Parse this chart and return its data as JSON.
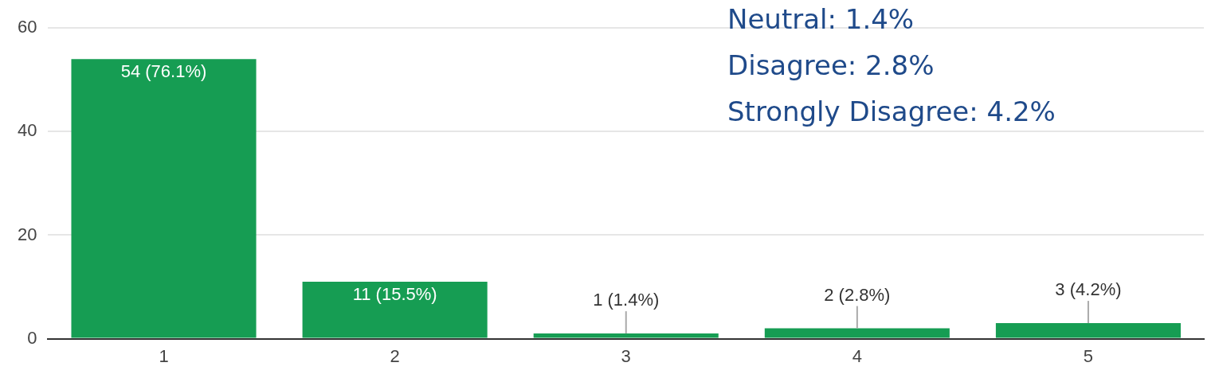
{
  "chart_data": {
    "type": "bar",
    "categories": [
      "1",
      "2",
      "3",
      "4",
      "5"
    ],
    "values": [
      54,
      11,
      1,
      2,
      3
    ],
    "color": "#169d53",
    "value_labels": [
      "54 (76.1%)",
      "11 (15.5%)",
      "1 (1.4%)",
      "2 (2.8%)",
      "3 (4.2%)"
    ],
    "ylim": [
      0,
      60
    ],
    "yticks": [
      0,
      20,
      40,
      60
    ],
    "grid": "y",
    "annotations": [
      "Neutral: 1.4%",
      "Disagree: 2.8%",
      "Strongly Disagree: 4.2%"
    ]
  }
}
